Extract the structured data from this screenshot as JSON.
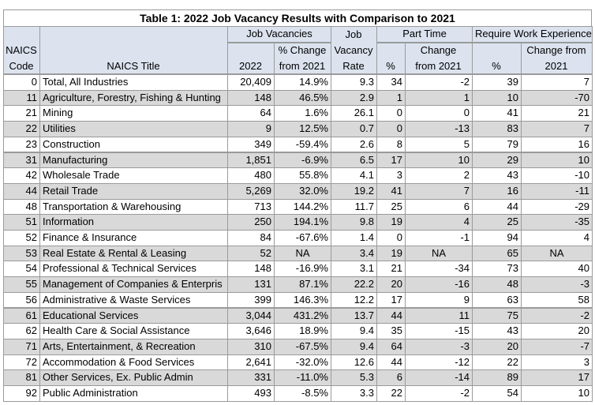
{
  "title": "Table 1:  2022 Job Vacancy Results with Comparison to 2021",
  "column_groups": [
    "Job Vacancies",
    "Part Time",
    "Require Work Experience"
  ],
  "columns": [
    [
      "NAICS",
      "Code"
    ],
    [
      "NAICS Title"
    ],
    [
      "2022"
    ],
    [
      "% Change",
      "from 2021"
    ],
    [
      "Job",
      "Vacancy",
      "Rate"
    ],
    [
      "%"
    ],
    [
      "Change",
      "from 2021"
    ],
    [
      "%"
    ],
    [
      "Change from",
      "2021"
    ]
  ],
  "rows": [
    [
      "0",
      "Total, All Industries",
      "20,409",
      "14.9%",
      "9.3",
      "34",
      "-2",
      "39",
      "7"
    ],
    [
      "11",
      "Agriculture, Forestry, Fishing & Hunting",
      "148",
      "46.5%",
      "2.9",
      "1",
      "1",
      "10",
      "-70"
    ],
    [
      "21",
      "Mining",
      "64",
      "1.6%",
      "26.1",
      "0",
      "0",
      "41",
      "21"
    ],
    [
      "22",
      "Utilities",
      "9",
      "12.5%",
      "0.7",
      "0",
      "-13",
      "83",
      "7"
    ],
    [
      "23",
      "Construction",
      "349",
      "-59.4%",
      "2.6",
      "8",
      "5",
      "79",
      "16"
    ],
    [
      "31",
      "Manufacturing",
      "1,851",
      "-6.9%",
      "6.5",
      "17",
      "10",
      "29",
      "10"
    ],
    [
      "42",
      "Wholesale Trade",
      "480",
      "55.8%",
      "4.1",
      "3",
      "2",
      "43",
      "-10"
    ],
    [
      "44",
      "Retail Trade",
      "5,269",
      "32.0%",
      "19.2",
      "41",
      "7",
      "16",
      "-11"
    ],
    [
      "48",
      "Transportation & Warehousing",
      "713",
      "144.2%",
      "11.7",
      "25",
      "6",
      "44",
      "-29"
    ],
    [
      "51",
      "Information",
      "250",
      "194.1%",
      "9.8",
      "19",
      "4",
      "25",
      "-35"
    ],
    [
      "52",
      "Finance & Insurance",
      "84",
      "-67.6%",
      "1.4",
      "0",
      "-1",
      "94",
      "4"
    ],
    [
      "53",
      "Real Estate & Rental & Leasing",
      "52",
      "NA",
      "3.4",
      "19",
      "NA",
      "65",
      "NA"
    ],
    [
      "54",
      "Professional & Technical Services",
      "148",
      "-16.9%",
      "3.1",
      "21",
      "-34",
      "73",
      "40"
    ],
    [
      "55",
      "Management of Companies & Enterpris",
      "131",
      "87.1%",
      "22.2",
      "20",
      "-16",
      "48",
      "-3"
    ],
    [
      "56",
      "Administrative & Waste Services",
      "399",
      "146.3%",
      "12.2",
      "17",
      "9",
      "63",
      "58"
    ],
    [
      "61",
      "Educational Services",
      "3,044",
      "431.2%",
      "13.7",
      "44",
      "11",
      "75",
      "-2"
    ],
    [
      "62",
      "Health Care & Social Assistance",
      "3,646",
      "18.9%",
      "9.4",
      "35",
      "-15",
      "43",
      "20"
    ],
    [
      "71",
      "Arts, Entertainment, & Recreation",
      "310",
      "-67.5%",
      "9.4",
      "64",
      "-3",
      "20",
      "-7"
    ],
    [
      "72",
      "Accommodation & Food Services",
      "2,641",
      "-32.0%",
      "12.6",
      "44",
      "-12",
      "22",
      "3"
    ],
    [
      "81",
      "Other Services, Ex. Public Admin",
      "331",
      "-11.0%",
      "5.3",
      "6",
      "-14",
      "89",
      "17"
    ],
    [
      "92",
      "Public Administration",
      "493",
      "-8.5%",
      "3.3",
      "22",
      "-2",
      "54",
      "10"
    ]
  ]
}
